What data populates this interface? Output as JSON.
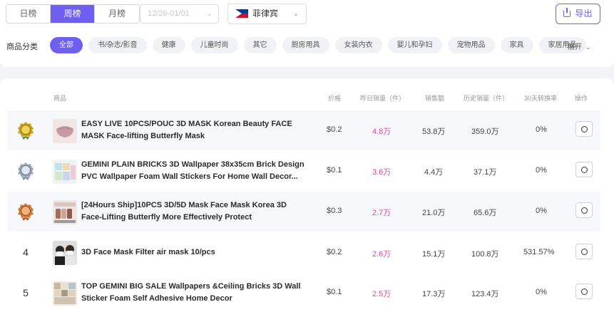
{
  "period_tabs": [
    "日榜",
    "周榜",
    "月榜"
  ],
  "active_period": "周榜",
  "date_range": {
    "value": "12/26-01/01"
  },
  "country": {
    "label": "菲律宾",
    "flag_icon": "philippines-flag-icon"
  },
  "export": {
    "label": "导出",
    "icon": "export-icon"
  },
  "categories": {
    "label": "商品分类",
    "items": [
      "全部",
      "书/杂志/影音",
      "健康",
      "儿童时尚",
      "其它",
      "厨房用具",
      "女装内衣",
      "婴儿和孕妇",
      "宠物用品",
      "家具",
      "家居用品"
    ],
    "active": "全部",
    "expand_label": "展开"
  },
  "table": {
    "headers": [
      "商品",
      "价格",
      "昨日销量（件）",
      "销售额",
      "历史销量（件）",
      "30天转换率",
      "操作"
    ],
    "rows": [
      {
        "rank": "1",
        "medal": "gold-medal-icon",
        "name": "EASY LIVE 10PCS/POUC 3D MASK Korean Beauty FACE MASK Face-lifting Butterfly Mask",
        "price": "$0.2",
        "yesterday_sales": "4.8万",
        "revenue": "53.8万",
        "history_sales": "359.0万",
        "conversion": "0%"
      },
      {
        "rank": "2",
        "medal": "silver-medal-icon",
        "name": "GEMINI PLAIN BRICKS 3D Wallpaper 38x35cm Brick Design PVC Wallpaper Foam Wall Stickers For Home Wall Decor...",
        "price": "$0.1",
        "yesterday_sales": "3.6万",
        "revenue": "4.4万",
        "history_sales": "37.1万",
        "conversion": "0%"
      },
      {
        "rank": "3",
        "medal": "bronze-medal-icon",
        "name": "[24Hours Ship]10PCS 3D/5D Mask Face Mask Korea 3D Face-Lifting Butterfly More Effectively Protect",
        "price": "$0.3",
        "yesterday_sales": "2.7万",
        "revenue": "21.0万",
        "history_sales": "65.6万",
        "conversion": "0%"
      },
      {
        "rank": "4",
        "medal": "",
        "name": "3D Face Mask Filter air mask 10/pcs",
        "price": "$0.2",
        "yesterday_sales": "2.6万",
        "revenue": "15.1万",
        "history_sales": "100.8万",
        "conversion": "531.57%"
      },
      {
        "rank": "5",
        "medal": "",
        "name": "TOP GEMINI BIG SALE Wallpapers &Ceiling Bricks 3D Wall Sticker Foam Self Adhesive Home Decor",
        "price": "$0.1",
        "yesterday_sales": "2.5万",
        "revenue": "17.3万",
        "history_sales": "123.4万",
        "conversion": "0%"
      }
    ]
  },
  "colors": {
    "accent": "#6e5ff0",
    "sales_pink": "#e1479f",
    "gold": "#c9a11a",
    "silver": "#9aa3b8",
    "bronze": "#d07a3c"
  }
}
